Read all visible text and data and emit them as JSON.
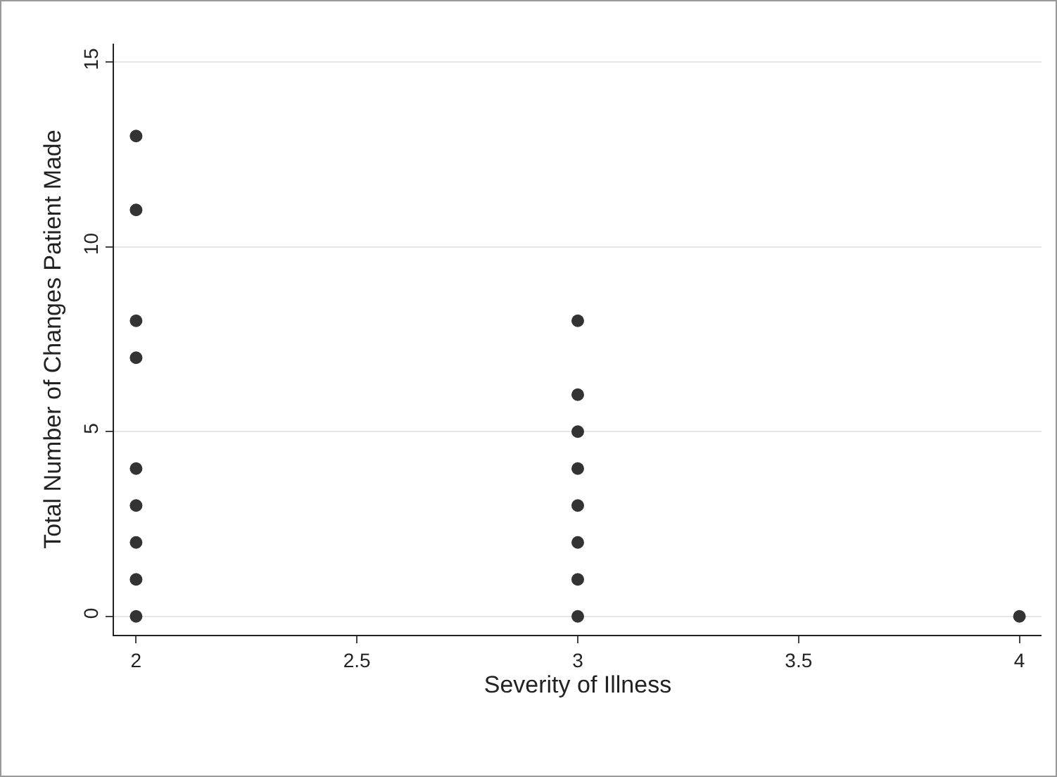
{
  "chart_data": {
    "type": "scatter",
    "xlabel": "Severity of Illness",
    "ylabel": "Total Number of Changes Patient Made",
    "x": [
      2,
      2,
      2,
      2,
      2,
      2,
      2,
      2,
      2,
      3,
      3,
      3,
      3,
      3,
      3,
      3,
      3,
      4
    ],
    "values": [
      13,
      11,
      8,
      7,
      4,
      3,
      2,
      1,
      0,
      8,
      6,
      5,
      4,
      3,
      2,
      1,
      0,
      0
    ],
    "color": "#333333",
    "marker": "circle",
    "xlim": [
      1.95,
      4.05
    ],
    "xticks": [
      2,
      2.5,
      3,
      3.5,
      4
    ],
    "ylim": [
      -0.5,
      15.5
    ],
    "yticks": [
      0,
      5,
      10,
      15
    ],
    "grid": "y",
    "legend": false
  }
}
